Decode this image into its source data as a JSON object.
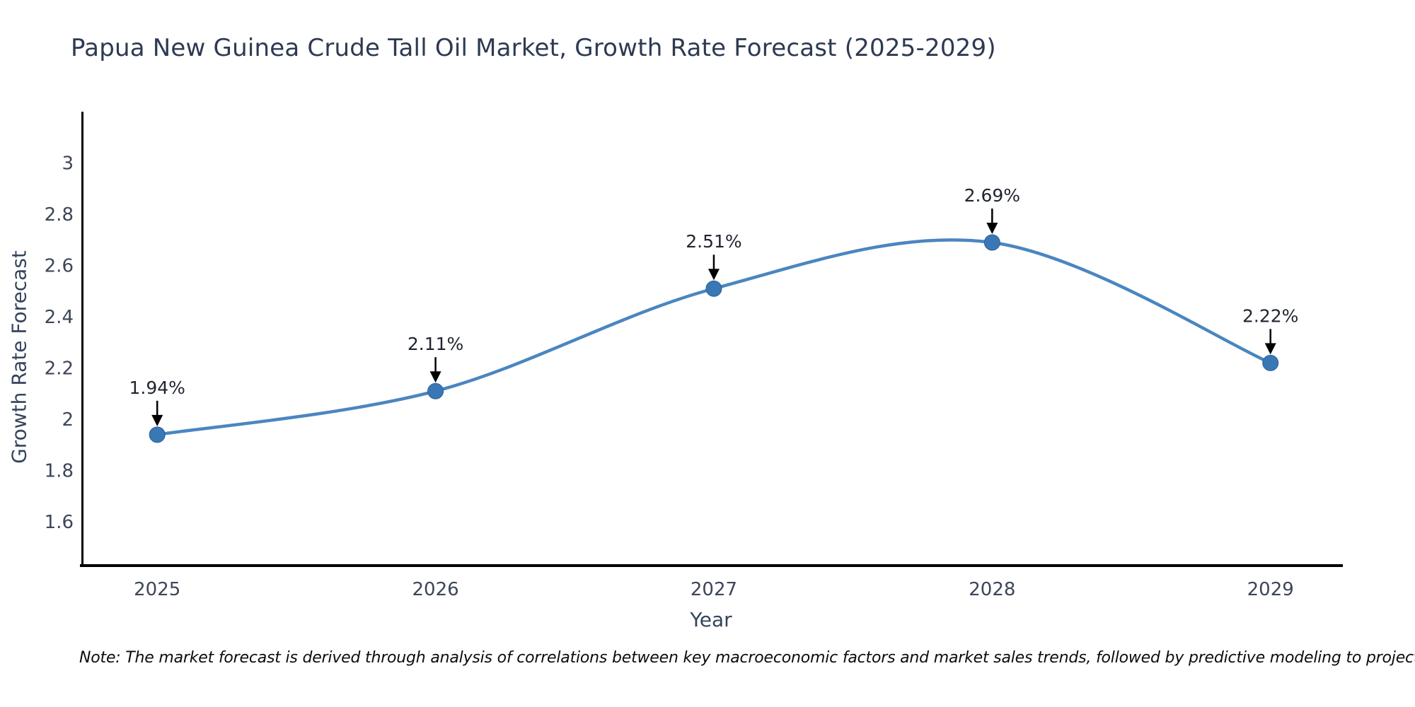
{
  "chart": {
    "title": "Papua New Guinea Crude Tall Oil Market, Growth Rate Forecast (2025-2029)",
    "xlabel": "Year",
    "ylabel": "Growth Rate Forecast",
    "note": "Note: The market forecast is derived through analysis of correlations between key macroeconomic factors and market sales trends, followed by predictive modeling to project future sales"
  },
  "chart_data": {
    "type": "line",
    "title": "Papua New Guinea Crude Tall Oil Market, Growth Rate Forecast (2025-2029)",
    "xlabel": "Year",
    "ylabel": "Growth Rate Forecast",
    "x": [
      2025,
      2026,
      2027,
      2028,
      2029
    ],
    "values": [
      1.94,
      2.11,
      2.51,
      2.69,
      2.22
    ],
    "point_labels": [
      "1.94%",
      "2.11%",
      "2.51%",
      "2.69%",
      "2.22%"
    ],
    "xtick_labels": [
      "2025",
      "2026",
      "2027",
      "2028",
      "2029"
    ],
    "yticks": [
      1.6,
      1.8,
      2,
      2.2,
      2.4,
      2.6,
      2.8,
      3
    ],
    "ytick_labels": [
      "1.6",
      "1.8",
      "2",
      "2.2",
      "2.4",
      "2.6",
      "2.8",
      "3"
    ],
    "xlim": [
      2024.73,
      2029.26
    ],
    "ylim": [
      1.429,
      3.195
    ],
    "grid": false,
    "legend": "none",
    "line_shape": "spline",
    "line_color": "#4a86c0",
    "marker_color": "#3a77b5",
    "marker_edge_color": "#2e5f94",
    "axis_color": "#000000",
    "annotation_color": "#000000"
  }
}
